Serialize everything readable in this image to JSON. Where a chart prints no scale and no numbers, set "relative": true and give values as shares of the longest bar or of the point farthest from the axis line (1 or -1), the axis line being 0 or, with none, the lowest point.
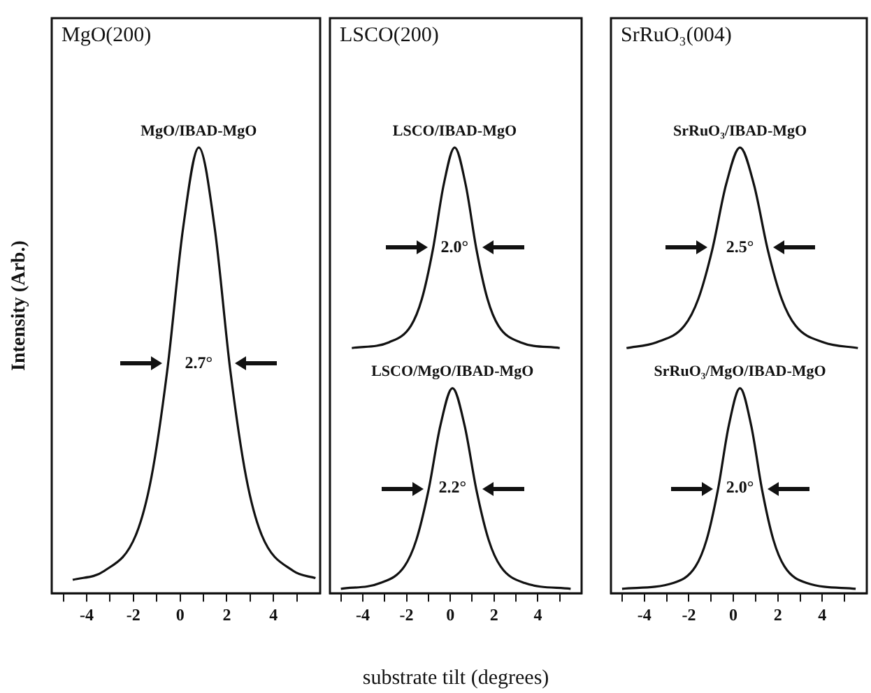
{
  "chart_data": [
    {
      "type": "line",
      "title": "MgO(200)",
      "ylabel": "Intensity (Arb.)",
      "relative": true,
      "marker": "none",
      "xlim": [
        -5.5,
        6
      ],
      "xticks": [
        {
          "value": -5,
          "label": null
        },
        -4,
        {
          "value": -3,
          "label": null
        },
        -2,
        {
          "value": -1,
          "label": null
        },
        0,
        {
          "value": 1,
          "label": null
        },
        2,
        {
          "value": 3,
          "label": null
        },
        4,
        {
          "value": 5,
          "label": null
        }
      ],
      "series": [
        {
          "name": "MgO/IBAD-MgO",
          "color": "#111111",
          "x": [
            -4.6,
            -3.25,
            -1.9,
            -1.23,
            -0.55,
            0.13,
            0.8,
            1.48,
            2.15,
            2.83,
            3.5,
            4.85,
            5.8
          ],
          "values": [
            0.03,
            0.05,
            0.13,
            0.26,
            0.5,
            0.82,
            1,
            0.82,
            0.5,
            0.26,
            0.13,
            0.05,
            0.034
          ]
        }
      ],
      "annotations": [
        "2.7°"
      ]
    },
    {
      "type": "line",
      "title": "LSCO(200)",
      "xlabel": "substrate tilt (degrees)",
      "relative": true,
      "marker": "none",
      "xlim": [
        -5.5,
        6
      ],
      "xticks": [
        {
          "value": -5,
          "label": null
        },
        -4,
        {
          "value": -3,
          "label": null
        },
        -2,
        {
          "value": -1,
          "label": null
        },
        0,
        {
          "value": 1,
          "label": null
        },
        2,
        {
          "value": 3,
          "label": null
        },
        4,
        {
          "value": 5,
          "label": null
        }
      ],
      "series": [
        {
          "name": "LSCO/IBAD-MgO",
          "color": "#111111",
          "x": [
            -4.5,
            -2.8,
            -1.8,
            -1.3,
            -0.8,
            -0.3,
            0.2,
            0.7,
            1.2,
            1.7,
            2.2,
            3.2,
            5.0
          ],
          "values": [
            0.55,
            0.563,
            0.6,
            0.66,
            0.77,
            0.917,
            1.0,
            0.917,
            0.77,
            0.66,
            0.6,
            0.563,
            0.55
          ]
        },
        {
          "name": "LSCO/MgO/IBAD-MgO",
          "color": "#111111",
          "x": [
            -5,
            -3.2,
            -2.1,
            -1.55,
            -1.0,
            -0.45,
            0.1,
            0.65,
            1.2,
            1.75,
            2.3,
            3.4,
            5.5
          ],
          "values": [
            0.01,
            0.023,
            0.06,
            0.12,
            0.23,
            0.377,
            0.46,
            0.377,
            0.23,
            0.12,
            0.06,
            0.023,
            0.01
          ]
        }
      ],
      "annotations": [
        "2.0°",
        "2.2°"
      ]
    },
    {
      "type": "line",
      "title": "SrRuO₃(004)",
      "relative": true,
      "marker": "none",
      "xlim": [
        -5.5,
        6
      ],
      "xticks": [
        {
          "value": -5,
          "label": null
        },
        -4,
        {
          "value": -3,
          "label": null
        },
        -2,
        {
          "value": -1,
          "label": null
        },
        0,
        {
          "value": 1,
          "label": null
        },
        2,
        {
          "value": 3,
          "label": null
        },
        4,
        {
          "value": 5,
          "label": null
        }
      ],
      "series": [
        {
          "name": "SrRuO₃/IBAD-MgO",
          "color": "#111111",
          "x": [
            -4.8,
            -3.45,
            -2.2,
            -1.575,
            -0.95,
            -0.325,
            0.3,
            0.925,
            1.55,
            2.175,
            2.8,
            4.05,
            5.6
          ],
          "values": [
            0.55,
            0.563,
            0.6,
            0.66,
            0.77,
            0.917,
            1.0,
            0.917,
            0.77,
            0.66,
            0.6,
            0.563,
            0.55
          ]
        },
        {
          "name": "SrRuO₃/MgO/IBAD-MgO",
          "color": "#111111",
          "x": [
            -5,
            -2.7,
            -1.7,
            -1.2,
            -0.7,
            -0.2,
            0.3,
            0.8,
            1.3,
            1.8,
            2.3,
            3.3,
            5.5
          ],
          "values": [
            0.01,
            0.023,
            0.06,
            0.12,
            0.23,
            0.377,
            0.46,
            0.377,
            0.23,
            0.12,
            0.06,
            0.023,
            0.01
          ]
        }
      ],
      "annotations": [
        "2.5°",
        "2.0°"
      ]
    }
  ]
}
